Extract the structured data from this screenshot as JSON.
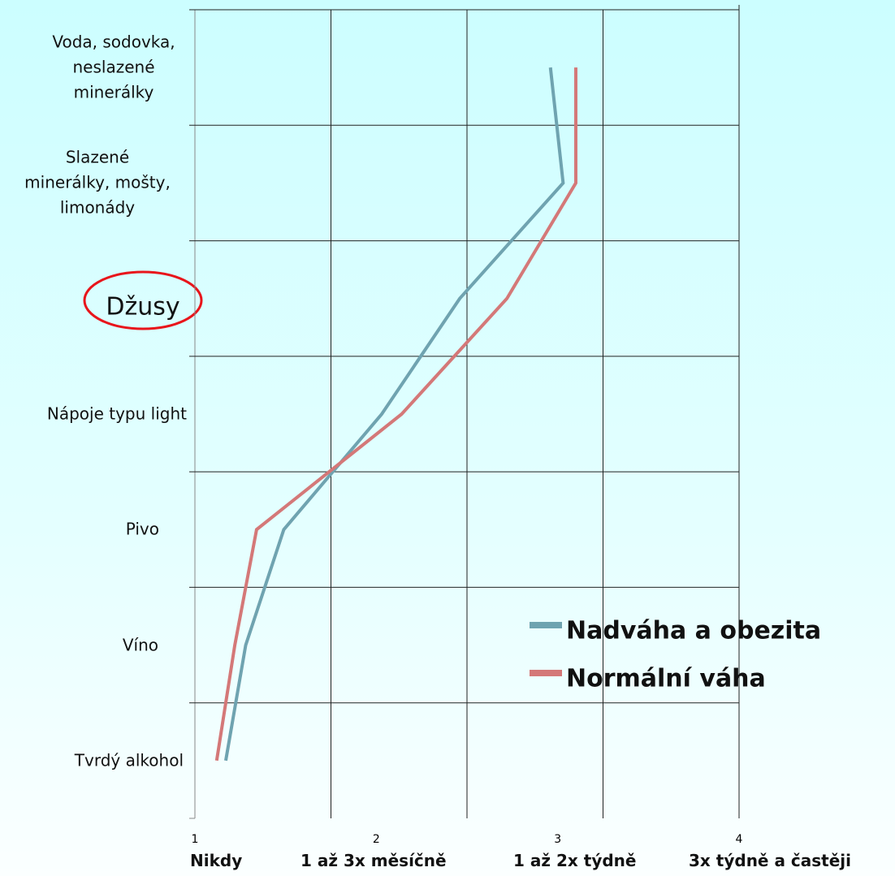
{
  "chart_data": {
    "type": "line",
    "categories": [
      "Voda, sodovka,\nneslazené\nminerálky",
      "Slazené\nminerálky, mošty,\nlimonády",
      "Džusy",
      "Nápoje typu light",
      "Pivo",
      "Víno",
      "Tvrdý alkohol"
    ],
    "series": [
      {
        "name": "Nadváha a obezita",
        "color": "#6fa3b0",
        "values": [
          2.96,
          3.03,
          2.46,
          2.03,
          1.49,
          1.28,
          1.17
        ]
      },
      {
        "name": "Normální váha",
        "color": "#d47878",
        "values": [
          3.1,
          3.1,
          2.72,
          2.14,
          1.34,
          1.22,
          1.12
        ]
      }
    ],
    "xlim": [
      1,
      4
    ],
    "xticks": [
      1,
      2,
      3,
      4
    ],
    "x_category_labels": [
      "Nikdy",
      "1 až 3x měsíčně",
      "1 až 2x týdně",
      "3x týdně a častěji"
    ]
  }
}
